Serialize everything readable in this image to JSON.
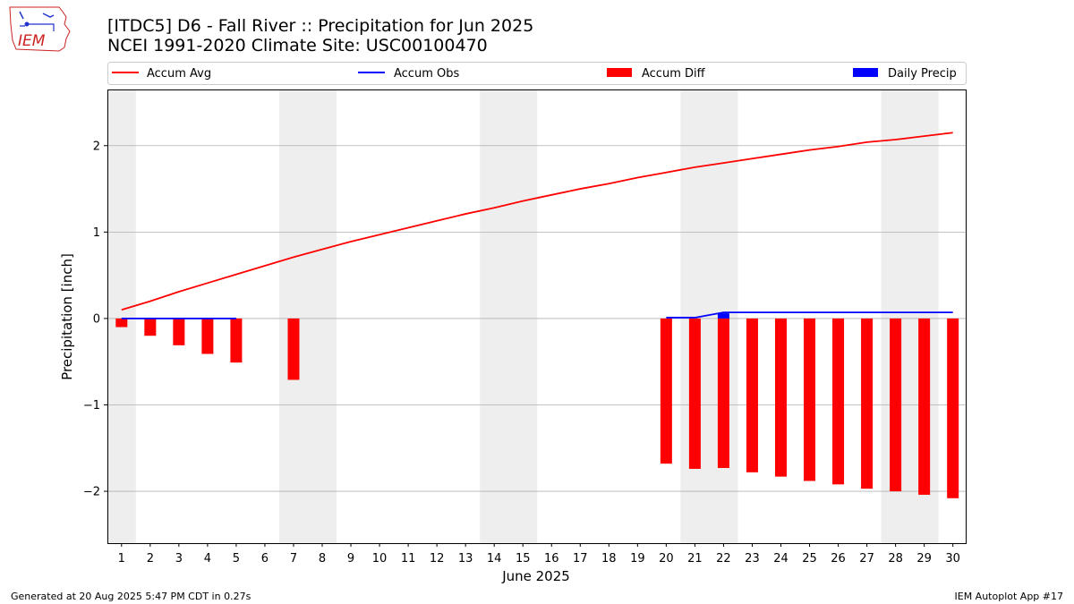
{
  "header": {
    "title_line1": "[ITDC5] D6 - Fall River  :: Precipitation for Jun 2025",
    "title_line2": "NCEI 1991-2020 Climate Site: USC00100470",
    "logo_text": "IEM"
  },
  "footer": {
    "left": "Generated at 20 Aug 2025 5:47 PM CDT in 0.27s",
    "right": "IEM Autoplot App #17"
  },
  "colors": {
    "avg": "#ff0000",
    "obs": "#0000ff",
    "diff": "#ff0000",
    "daily": "#0000ff",
    "weekend_band": "#eeeeee",
    "grid": "#b0b0b0"
  },
  "chart_data": {
    "type": "bar",
    "title": "[ITDC5] D6 - Fall River  :: Precipitation for Jun 2025",
    "subtitle": "NCEI 1991-2020 Climate Site: USC00100470",
    "xlabel": "June 2025",
    "ylabel": "Precipitation [inch]",
    "ylim": [
      -2.6,
      2.65
    ],
    "yticks": [
      -2,
      -1,
      0,
      1,
      2
    ],
    "ytick_labels": [
      "−2",
      "−1",
      "0",
      "1",
      "2"
    ],
    "x": [
      1,
      2,
      3,
      4,
      5,
      6,
      7,
      8,
      9,
      10,
      11,
      12,
      13,
      14,
      15,
      16,
      17,
      18,
      19,
      20,
      21,
      22,
      23,
      24,
      25,
      26,
      27,
      28,
      29,
      30
    ],
    "grid": "horizontal",
    "legend_position": "top",
    "weekend_bands": [
      [
        1,
        1
      ],
      [
        7,
        8
      ],
      [
        14,
        15
      ],
      [
        21,
        22
      ],
      [
        28,
        29
      ]
    ],
    "series": [
      {
        "name": "Accum Avg",
        "kind": "line",
        "color": "#ff0000",
        "x": [
          1,
          2,
          3,
          4,
          5,
          6,
          7,
          8,
          9,
          10,
          11,
          12,
          13,
          14,
          15,
          16,
          17,
          18,
          19,
          20,
          21,
          22,
          23,
          24,
          25,
          26,
          27,
          28,
          29,
          30
        ],
        "values": [
          0.1,
          0.2,
          0.31,
          0.41,
          0.51,
          0.61,
          0.71,
          0.8,
          0.89,
          0.97,
          1.05,
          1.13,
          1.21,
          1.28,
          1.36,
          1.43,
          1.5,
          1.56,
          1.63,
          1.69,
          1.75,
          1.8,
          1.85,
          1.9,
          1.95,
          1.99,
          2.04,
          2.07,
          2.11,
          2.15
        ]
      },
      {
        "name": "Accum Obs",
        "kind": "line",
        "color": "#0000ff",
        "x": [
          1,
          2,
          3,
          4,
          5,
          20,
          21,
          22,
          23,
          24,
          25,
          26,
          27,
          28,
          29,
          30
        ],
        "values": [
          0,
          0,
          0,
          0,
          0,
          0.01,
          0.01,
          0.07,
          0.07,
          0.07,
          0.07,
          0.07,
          0.07,
          0.07,
          0.07,
          0.07
        ]
      },
      {
        "name": "Accum Diff",
        "kind": "bar",
        "color": "#ff0000",
        "x": [
          1,
          2,
          3,
          4,
          5,
          7,
          20,
          21,
          22,
          23,
          24,
          25,
          26,
          27,
          28,
          29,
          30
        ],
        "values": [
          -0.1,
          -0.2,
          -0.31,
          -0.41,
          -0.51,
          -0.71,
          -1.68,
          -1.74,
          -1.73,
          -1.78,
          -1.83,
          -1.88,
          -1.92,
          -1.97,
          -2.0,
          -2.04,
          -2.08
        ]
      },
      {
        "name": "Daily Precip",
        "kind": "bar",
        "color": "#0000ff",
        "x": [
          22
        ],
        "values": [
          0.06
        ]
      }
    ]
  }
}
